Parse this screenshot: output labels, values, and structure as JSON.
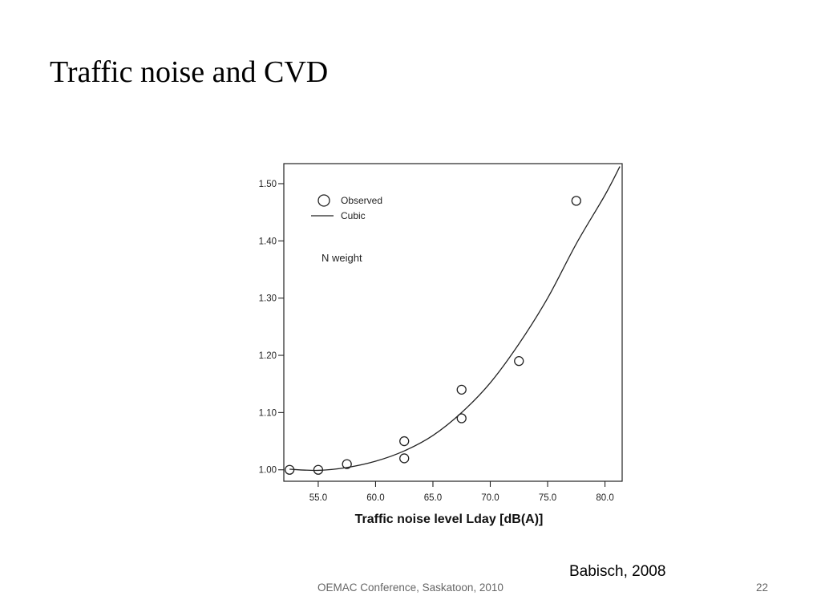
{
  "slide": {
    "title": "Traffic noise and CVD",
    "citation": "Babisch, 2008",
    "footer": "OEMAC Conference, Saskatoon, 2010",
    "page_number": "22"
  },
  "chart_data": {
    "type": "scatter",
    "xlabel": "Traffic noise level Lday [dB(A)]",
    "ylabel": "",
    "xlim": [
      52.0,
      81.5
    ],
    "ylim": [
      0.98,
      1.535
    ],
    "x_ticks": [
      "55.0",
      "60.0",
      "65.0",
      "70.0",
      "75.0",
      "80.0"
    ],
    "y_ticks": [
      "1.00",
      "1.10",
      "1.20",
      "1.30",
      "1.40",
      "1.50"
    ],
    "legend": {
      "placement": "top-left",
      "items": [
        "Observed",
        "Cubic"
      ]
    },
    "annotation": "N weight",
    "series": [
      {
        "name": "Observed",
        "kind": "points",
        "points": [
          {
            "x": 52.5,
            "y": 1.0
          },
          {
            "x": 55.0,
            "y": 1.0
          },
          {
            "x": 57.5,
            "y": 1.01
          },
          {
            "x": 62.5,
            "y": 1.05
          },
          {
            "x": 62.5,
            "y": 1.02
          },
          {
            "x": 67.5,
            "y": 1.14
          },
          {
            "x": 67.5,
            "y": 1.09
          },
          {
            "x": 72.5,
            "y": 1.19
          },
          {
            "x": 77.5,
            "y": 1.47
          }
        ]
      },
      {
        "name": "Cubic",
        "kind": "curve",
        "points": [
          {
            "x": 52.5,
            "y": 1.001
          },
          {
            "x": 55.0,
            "y": 0.999
          },
          {
            "x": 57.5,
            "y": 1.004
          },
          {
            "x": 60.0,
            "y": 1.015
          },
          {
            "x": 62.5,
            "y": 1.033
          },
          {
            "x": 65.0,
            "y": 1.06
          },
          {
            "x": 67.5,
            "y": 1.1
          },
          {
            "x": 70.0,
            "y": 1.152
          },
          {
            "x": 72.5,
            "y": 1.22
          },
          {
            "x": 75.0,
            "y": 1.3
          },
          {
            "x": 77.5,
            "y": 1.395
          },
          {
            "x": 80.0,
            "y": 1.48
          },
          {
            "x": 81.3,
            "y": 1.53
          }
        ]
      }
    ],
    "colors": {
      "marker": "#222222",
      "line": "#222222",
      "axes": "#222222"
    }
  }
}
